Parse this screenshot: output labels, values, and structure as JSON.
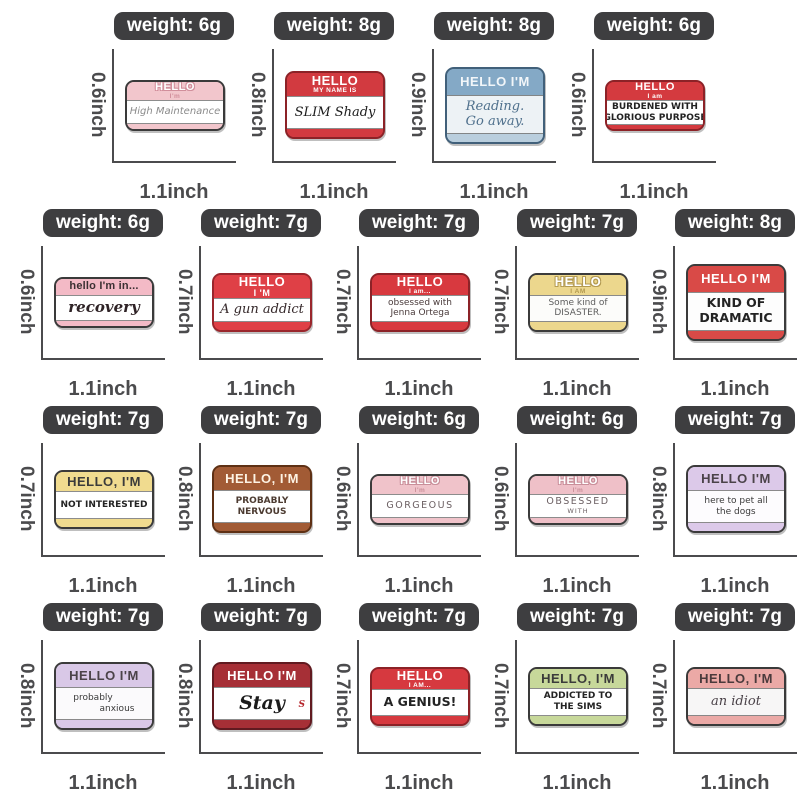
{
  "styles": {
    "badge_bg": "#3e3e40",
    "badge_text": "#ffffff",
    "dimension_text": "#4b4b4d",
    "dimension_line": "#4b4b4d",
    "page_bg": "#ffffff"
  },
  "rows": [
    {
      "pins": [
        {
          "weight": "weight: 6g",
          "height": "0.6inch",
          "width": "1.1inch",
          "tag": {
            "header": {
              "main": "HELLO",
              "sub": "I'm",
              "style": "outline"
            },
            "body_font": "italic",
            "body_lines": [
              {
                "t": "High Maintenance"
              }
            ],
            "colors": {
              "accent": "#f2c6cc",
              "border": "#3a3a3a",
              "head_text": "#ffffff",
              "head_outline": "#d18e9b",
              "body_bg": "#ffffff",
              "body_text": "#8b8b8b"
            }
          }
        },
        {
          "weight": "weight: 8g",
          "height": "0.8inch",
          "width": "1.1inch",
          "tag": {
            "header": {
              "main": "HELLO",
              "sub": "MY NAME IS"
            },
            "body_font": "script",
            "body_lines": [
              {
                "t": "SLIM Shady"
              }
            ],
            "colors": {
              "accent": "#d23a40",
              "border": "#8c2227",
              "head_text": "#ffffff",
              "body_bg": "#ffffff",
              "body_text": "#1d1d1d"
            }
          }
        },
        {
          "weight": "weight: 8g",
          "height": "0.9inch",
          "width": "1.1inch",
          "tag": {
            "header": {
              "main": "HELLO I'M"
            },
            "body_font": "script",
            "body_lines": [
              {
                "t": "Reading."
              },
              {
                "t": "Go away."
              }
            ],
            "colors": {
              "accent": "#84a9c6",
              "border": "#41607a",
              "head_text": "#f2f6f9",
              "body_bg": "#edf2f5",
              "body_text": "#4f708c",
              "foot": "#b9cedd"
            }
          }
        },
        {
          "weight": "weight: 6g",
          "height": "0.6inch",
          "width": "1.1inch",
          "tag": {
            "header": {
              "main": "HELLO",
              "sub": "I am"
            },
            "body_font": "caps",
            "body_lines": [
              {
                "t": "BURDENED WITH"
              },
              {
                "t": "GLORIOUS PURPOSE"
              }
            ],
            "colors": {
              "accent": "#d43a3f",
              "border": "#8c2227",
              "head_text": "#ffffff",
              "body_bg": "#ffffff",
              "body_text": "#222222"
            }
          }
        }
      ]
    },
    {
      "pins": [
        {
          "weight": "weight: 6g",
          "height": "0.6inch",
          "width": "1.1inch",
          "tag": {
            "header": {
              "main": "hello I'm in...",
              "style": "small-head"
            },
            "body_font": "script-bold",
            "body_lines": [
              {
                "t": "recovery"
              }
            ],
            "colors": {
              "accent": "#f3bac6",
              "border": "#3a3a3a",
              "head_text": "#3b3033",
              "body_bg": "#ffffff",
              "body_text": "#2f2326"
            }
          }
        },
        {
          "weight": "weight: 7g",
          "height": "0.7inch",
          "width": "1.1inch",
          "tag": {
            "header": {
              "main": "HELLO",
              "sub": "I 'M",
              "style": "sub-lg"
            },
            "body_font": "script",
            "body_lines": [
              {
                "t": "A gun addict"
              }
            ],
            "colors": {
              "accent": "#df4046",
              "border": "#9a262c",
              "head_text": "#ffffff",
              "body_bg": "#ffffff",
              "body_text": "#35282a"
            }
          }
        },
        {
          "weight": "weight: 7g",
          "height": "0.7inch",
          "width": "1.1inch",
          "tag": {
            "header": {
              "main": "HELLO",
              "sub": "I am..."
            },
            "body_font": "hand",
            "body_lines": [
              {
                "t": "obsessed with"
              },
              {
                "t": "Jenna Ortega"
              }
            ],
            "colors": {
              "accent": "#d8393f",
              "border": "#8c2227",
              "head_text": "#ffffff",
              "body_bg": "#ffffff",
              "body_text": "#4a3b3b"
            }
          }
        },
        {
          "weight": "weight: 7g",
          "height": "0.7inch",
          "width": "1.1inch",
          "tag": {
            "header": {
              "main": "HELLO",
              "sub": "I AM",
              "style": "outline"
            },
            "body_font": "hand",
            "body_lines": [
              {
                "t": "Some kind of"
              },
              {
                "t": "DISASTER."
              }
            ],
            "colors": {
              "accent": "#ecd78d",
              "border": "#3b3b3b",
              "head_text": "#ffffff",
              "head_outline": "#b39a51",
              "body_bg": "#fcfcfa",
              "body_text": "#5d5d5d"
            }
          }
        },
        {
          "weight": "weight: 8g",
          "height": "0.9inch",
          "width": "1.1inch",
          "tag": {
            "header": {
              "main": "HELLO I'M"
            },
            "body_font": "caps-lg",
            "body_lines": [
              {
                "t": "KIND OF"
              },
              {
                "t": "DRAMATIC"
              }
            ],
            "colors": {
              "accent": "#d94a47",
              "border": "#3b3b3b",
              "head_text": "#ffffff",
              "body_bg": "#fdfdfd",
              "body_text": "#232323"
            }
          }
        }
      ]
    },
    {
      "pins": [
        {
          "weight": "weight: 7g",
          "height": "0.7inch",
          "width": "1.1inch",
          "tag": {
            "header": {
              "main": "HELLO, I'M"
            },
            "body_font": "caps",
            "body_lines": [
              {
                "t": "NOT INTERESTED"
              }
            ],
            "colors": {
              "accent": "#f0db8f",
              "border": "#3a3a3a",
              "head_text": "#3b3b3b",
              "body_bg": "#ffffff",
              "body_text": "#232323"
            }
          }
        },
        {
          "weight": "weight: 7g",
          "height": "0.8inch",
          "width": "1.1inch",
          "tag": {
            "header": {
              "main": "HELLO, I'M"
            },
            "body_font": "caps",
            "body_lines": [
              {
                "t": "PROBABLY"
              },
              {
                "t": "NERVOUS"
              }
            ],
            "colors": {
              "accent": "#a25b35",
              "border": "#5e3014",
              "head_text": "#fdf3e4",
              "body_bg": "#ffffff",
              "body_text": "#4c3b31"
            }
          }
        },
        {
          "weight": "weight: 6g",
          "height": "0.6inch",
          "width": "1.1inch",
          "tag": {
            "header": {
              "main": "HELLO",
              "sub": "I'm",
              "style": "outline"
            },
            "body_font": "thin",
            "body_lines": [
              {
                "t": "GORGEOUS"
              }
            ],
            "colors": {
              "accent": "#f0c3ca",
              "border": "#3b3b3b",
              "head_text": "#ffffff",
              "head_outline": "#c98f9a",
              "body_bg": "#ffffff",
              "body_text": "#6b5f62"
            }
          }
        },
        {
          "weight": "weight: 6g",
          "height": "0.6inch",
          "width": "1.1inch",
          "tag": {
            "header": {
              "main": "HELLO",
              "sub": "I'm",
              "style": "outline"
            },
            "body_font": "thin",
            "body_lines": [
              {
                "t": "OBSESSED"
              },
              {
                "t": "WITH",
                "cls": "small"
              }
            ],
            "colors": {
              "accent": "#efc0c8",
              "border": "#3b3b3b",
              "head_text": "#ffffff",
              "head_outline": "#c98f9a",
              "body_bg": "#ffffff",
              "body_text": "#6b5f62"
            }
          }
        },
        {
          "weight": "weight: 7g",
          "height": "0.8inch",
          "width": "1.1inch",
          "tag": {
            "header": {
              "main": "HELLO I'M"
            },
            "body_font": "hand",
            "body_lines": [
              {
                "t": "here to pet all"
              },
              {
                "t": "the dogs"
              }
            ],
            "colors": {
              "accent": "#dcc9e9",
              "border": "#3b3b3b",
              "head_text": "#4b4349",
              "body_bg": "#fdfcfe",
              "body_text": "#3a3a3a"
            }
          }
        }
      ]
    },
    {
      "pins": [
        {
          "weight": "weight: 7g",
          "height": "0.8inch",
          "width": "1.1inch",
          "tag": {
            "header": {
              "main": "HELLO I'M"
            },
            "body_font": "hand",
            "body_lines": [
              {
                "t": "probably",
                "cls": "outdent"
              },
              {
                "t": "anxious",
                "cls": "indent"
              }
            ],
            "colors": {
              "accent": "#d9c8e7",
              "border": "#3b3b3b",
              "head_text": "#4b4349",
              "body_bg": "#fbfafc",
              "body_text": "#3a3a3a"
            }
          }
        },
        {
          "weight": "weight: 7g",
          "height": "0.8inch",
          "width": "1.1inch",
          "tag": {
            "header": {
              "main": "HELLO I'M"
            },
            "body_font": "sign",
            "body_lines": [
              {
                "t": "Stay"
              }
            ],
            "body_mark": "S",
            "colors": {
              "accent": "#a62f36",
              "border": "#611a20",
              "head_text": "#ffffff",
              "body_bg": "#ffffff",
              "body_text": "#1c1c1c"
            }
          }
        },
        {
          "weight": "weight: 7g",
          "height": "0.7inch",
          "width": "1.1inch",
          "tag": {
            "header": {
              "main": "HELLO",
              "sub": "I AM..."
            },
            "body_font": "caps-lg",
            "body_lines": [
              {
                "t": "A GENIUS!"
              }
            ],
            "colors": {
              "accent": "#d6393f",
              "border": "#8c2227",
              "head_text": "#ffffff",
              "body_bg": "#ffffff",
              "body_text": "#232323"
            }
          }
        },
        {
          "weight": "weight: 7g",
          "height": "0.7inch",
          "width": "1.1inch",
          "tag": {
            "header": {
              "main": "HELLO, I'M"
            },
            "body_font": "caps",
            "body_lines": [
              {
                "t": "ADDICTED TO"
              },
              {
                "t": "THE SIMS"
              }
            ],
            "colors": {
              "accent": "#c7d89a",
              "border": "#3a3a3a",
              "head_text": "#3b3b3b",
              "body_bg": "#ffffff",
              "body_text": "#232323"
            }
          }
        },
        {
          "weight": "weight: 7g",
          "height": "0.7inch",
          "width": "1.1inch",
          "tag": {
            "header": {
              "main": "HELLO, I'M"
            },
            "body_font": "serif",
            "body_lines": [
              {
                "t": "an idiot"
              }
            ],
            "colors": {
              "accent": "#eba9a6",
              "border": "#3a3a3a",
              "head_text": "#4a3a3c",
              "body_bg": "#f7f6f6",
              "body_text": "#4a4248"
            }
          }
        }
      ]
    }
  ]
}
